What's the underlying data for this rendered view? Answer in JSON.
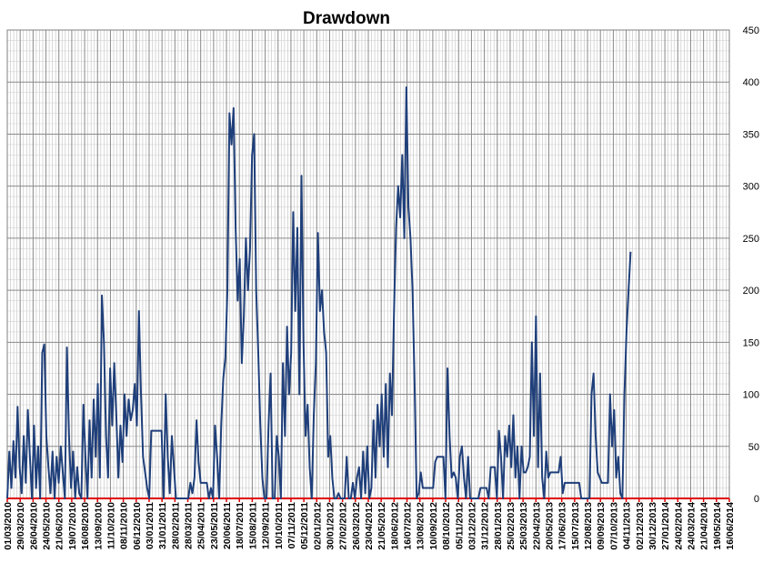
{
  "chart_data": {
    "type": "line",
    "title": "Drawdown",
    "xlabel": "",
    "ylabel": "",
    "y_axis_side": "right",
    "ylim": [
      0,
      450
    ],
    "y_ticks": [
      "0",
      "50",
      "100",
      "150",
      "200",
      "250",
      "300",
      "350",
      "400",
      "450"
    ],
    "x_tick_labels": [
      "01/03/2010",
      "29/03/2010",
      "26/04/2010",
      "24/05/2010",
      "21/06/2010",
      "19/07/2010",
      "16/08/2010",
      "13/09/2010",
      "11/10/2010",
      "08/11/2010",
      "06/12/2010",
      "03/01/2011",
      "31/01/2011",
      "28/02/2011",
      "28/03/2011",
      "25/04/2011",
      "23/05/2011",
      "20/06/2011",
      "18/07/2011",
      "15/08/2011",
      "12/09/2011",
      "10/10/2011",
      "07/11/2011",
      "05/12/2011",
      "02/01/2012",
      "30/01/2012",
      "27/02/2012",
      "26/03/2012",
      "23/04/2012",
      "21/05/2012",
      "18/06/2012",
      "16/07/2012",
      "13/08/2012",
      "10/09/2012",
      "08/10/2012",
      "05/11/2012",
      "03/12/2012",
      "31/12/2012",
      "28/01/2013",
      "25/02/2013",
      "25/03/2013",
      "22/04/2013",
      "20/05/2013",
      "17/06/2013",
      "15/07/2013",
      "12/08/2013",
      "09/09/2013",
      "07/10/2013",
      "04/11/2013",
      "02/12/2013",
      "30/12/2013",
      "27/01/2014",
      "24/02/2014",
      "24/03/2014",
      "21/04/2014",
      "19/05/2014",
      "16/06/2014"
    ],
    "grid": true,
    "legend": "none",
    "series": [
      {
        "color": "#1F3F7A",
        "points": [
          [
            0,
            0
          ],
          [
            1,
            45
          ],
          [
            2,
            10
          ],
          [
            3,
            55
          ],
          [
            4,
            20
          ],
          [
            5,
            88
          ],
          [
            6,
            30
          ],
          [
            7,
            5
          ],
          [
            8,
            60
          ],
          [
            9,
            15
          ],
          [
            10,
            85
          ],
          [
            11,
            40
          ],
          [
            12,
            0
          ],
          [
            13,
            70
          ],
          [
            14,
            10
          ],
          [
            15,
            50
          ],
          [
            16,
            0
          ],
          [
            17,
            140
          ],
          [
            18,
            148
          ],
          [
            19,
            60
          ],
          [
            20,
            30
          ],
          [
            21,
            5
          ],
          [
            22,
            45
          ],
          [
            23,
            0
          ],
          [
            24,
            40
          ],
          [
            25,
            15
          ],
          [
            26,
            50
          ],
          [
            27,
            25
          ],
          [
            28,
            0
          ],
          [
            29,
            145
          ],
          [
            30,
            60
          ],
          [
            31,
            10
          ],
          [
            32,
            45
          ],
          [
            33,
            0
          ],
          [
            34,
            30
          ],
          [
            35,
            5
          ],
          [
            36,
            0
          ],
          [
            37,
            90
          ],
          [
            38,
            40
          ],
          [
            39,
            0
          ],
          [
            40,
            75
          ],
          [
            41,
            20
          ],
          [
            42,
            95
          ],
          [
            43,
            40
          ],
          [
            44,
            110
          ],
          [
            45,
            20
          ],
          [
            46,
            195
          ],
          [
            47,
            150
          ],
          [
            48,
            60
          ],
          [
            49,
            20
          ],
          [
            50,
            125
          ],
          [
            51,
            70
          ],
          [
            52,
            130
          ],
          [
            53,
            80
          ],
          [
            54,
            20
          ],
          [
            55,
            70
          ],
          [
            56,
            35
          ],
          [
            57,
            100
          ],
          [
            58,
            60
          ],
          [
            59,
            95
          ],
          [
            60,
            75
          ],
          [
            61,
            85
          ],
          [
            62,
            110
          ],
          [
            63,
            70
          ],
          [
            64,
            180
          ],
          [
            65,
            100
          ],
          [
            66,
            40
          ],
          [
            67,
            25
          ],
          [
            68,
            10
          ],
          [
            69,
            0
          ],
          [
            70,
            65
          ],
          [
            71,
            65
          ],
          [
            72,
            65
          ],
          [
            73,
            65
          ],
          [
            74,
            65
          ],
          [
            75,
            65
          ],
          [
            76,
            0
          ],
          [
            77,
            100
          ],
          [
            78,
            40
          ],
          [
            79,
            5
          ],
          [
            80,
            60
          ],
          [
            81,
            30
          ],
          [
            82,
            0
          ],
          [
            83,
            0
          ],
          [
            84,
            0
          ],
          [
            85,
            0
          ],
          [
            86,
            0
          ],
          [
            87,
            0
          ],
          [
            88,
            0
          ],
          [
            89,
            15
          ],
          [
            90,
            5
          ],
          [
            91,
            20
          ],
          [
            92,
            75
          ],
          [
            93,
            35
          ],
          [
            94,
            15
          ],
          [
            95,
            15
          ],
          [
            96,
            15
          ],
          [
            97,
            15
          ],
          [
            98,
            0
          ],
          [
            99,
            10
          ],
          [
            100,
            0
          ],
          [
            101,
            70
          ],
          [
            102,
            40
          ],
          [
            103,
            0
          ],
          [
            104,
            70
          ],
          [
            105,
            115
          ],
          [
            106,
            135
          ],
          [
            107,
            200
          ],
          [
            108,
            370
          ],
          [
            109,
            340
          ],
          [
            110,
            375
          ],
          [
            111,
            260
          ],
          [
            112,
            190
          ],
          [
            113,
            230
          ],
          [
            114,
            130
          ],
          [
            115,
            175
          ],
          [
            116,
            250
          ],
          [
            117,
            200
          ],
          [
            118,
            240
          ],
          [
            119,
            330
          ],
          [
            120,
            350
          ],
          [
            121,
            200
          ],
          [
            122,
            140
          ],
          [
            123,
            70
          ],
          [
            124,
            20
          ],
          [
            125,
            0
          ],
          [
            126,
            0
          ],
          [
            127,
            70
          ],
          [
            128,
            120
          ],
          [
            129,
            0
          ],
          [
            130,
            0
          ],
          [
            131,
            60
          ],
          [
            132,
            40
          ],
          [
            133,
            0
          ],
          [
            134,
            130
          ],
          [
            135,
            60
          ],
          [
            136,
            165
          ],
          [
            137,
            100
          ],
          [
            138,
            140
          ],
          [
            139,
            275
          ],
          [
            140,
            180
          ],
          [
            141,
            260
          ],
          [
            142,
            100
          ],
          [
            143,
            310
          ],
          [
            144,
            150
          ],
          [
            145,
            60
          ],
          [
            146,
            90
          ],
          [
            147,
            30
          ],
          [
            148,
            0
          ],
          [
            149,
            80
          ],
          [
            150,
            130
          ],
          [
            151,
            255
          ],
          [
            152,
            180
          ],
          [
            153,
            200
          ],
          [
            154,
            160
          ],
          [
            155,
            140
          ],
          [
            156,
            40
          ],
          [
            157,
            60
          ],
          [
            158,
            20
          ],
          [
            159,
            0
          ],
          [
            160,
            0
          ],
          [
            161,
            5
          ],
          [
            162,
            0
          ],
          [
            163,
            0
          ],
          [
            164,
            0
          ],
          [
            165,
            40
          ],
          [
            166,
            0
          ],
          [
            167,
            0
          ],
          [
            168,
            15
          ],
          [
            169,
            0
          ],
          [
            170,
            20
          ],
          [
            171,
            30
          ],
          [
            172,
            0
          ],
          [
            173,
            45
          ],
          [
            174,
            5
          ],
          [
            175,
            50
          ],
          [
            176,
            0
          ],
          [
            177,
            10
          ],
          [
            178,
            75
          ],
          [
            179,
            20
          ],
          [
            180,
            90
          ],
          [
            181,
            50
          ],
          [
            182,
            100
          ],
          [
            183,
            40
          ],
          [
            184,
            110
          ],
          [
            185,
            30
          ],
          [
            186,
            120
          ],
          [
            187,
            80
          ],
          [
            188,
            180
          ],
          [
            189,
            260
          ],
          [
            190,
            300
          ],
          [
            191,
            270
          ],
          [
            192,
            330
          ],
          [
            193,
            250
          ],
          [
            194,
            395
          ],
          [
            195,
            280
          ],
          [
            196,
            250
          ],
          [
            197,
            200
          ],
          [
            198,
            110
          ],
          [
            199,
            0
          ],
          [
            200,
            5
          ],
          [
            201,
            25
          ],
          [
            202,
            10
          ],
          [
            203,
            10
          ],
          [
            204,
            10
          ],
          [
            205,
            10
          ],
          [
            206,
            10
          ],
          [
            207,
            10
          ],
          [
            208,
            35
          ],
          [
            209,
            40
          ],
          [
            210,
            40
          ],
          [
            211,
            40
          ],
          [
            212,
            40
          ],
          [
            213,
            0
          ],
          [
            214,
            125
          ],
          [
            215,
            60
          ],
          [
            216,
            20
          ],
          [
            217,
            25
          ],
          [
            218,
            20
          ],
          [
            219,
            0
          ],
          [
            220,
            40
          ],
          [
            221,
            50
          ],
          [
            222,
            20
          ],
          [
            223,
            0
          ],
          [
            224,
            40
          ],
          [
            225,
            0
          ],
          [
            226,
            0
          ],
          [
            227,
            0
          ],
          [
            228,
            0
          ],
          [
            229,
            0
          ],
          [
            230,
            10
          ],
          [
            231,
            10
          ],
          [
            232,
            10
          ],
          [
            233,
            10
          ],
          [
            234,
            0
          ],
          [
            235,
            30
          ],
          [
            236,
            30
          ],
          [
            237,
            30
          ],
          [
            238,
            0
          ],
          [
            239,
            65
          ],
          [
            240,
            40
          ],
          [
            241,
            0
          ],
          [
            242,
            60
          ],
          [
            243,
            40
          ],
          [
            244,
            70
          ],
          [
            245,
            30
          ],
          [
            246,
            80
          ],
          [
            247,
            20
          ],
          [
            248,
            50
          ],
          [
            249,
            0
          ],
          [
            250,
            50
          ],
          [
            251,
            25
          ],
          [
            252,
            25
          ],
          [
            253,
            30
          ],
          [
            254,
            40
          ],
          [
            255,
            150
          ],
          [
            256,
            60
          ],
          [
            257,
            175
          ],
          [
            258,
            30
          ],
          [
            259,
            120
          ],
          [
            260,
            20
          ],
          [
            261,
            0
          ],
          [
            262,
            45
          ],
          [
            263,
            20
          ],
          [
            264,
            25
          ],
          [
            265,
            25
          ],
          [
            266,
            25
          ],
          [
            267,
            25
          ],
          [
            268,
            25
          ],
          [
            269,
            40
          ],
          [
            270,
            5
          ],
          [
            271,
            15
          ],
          [
            272,
            15
          ],
          [
            273,
            15
          ],
          [
            274,
            15
          ],
          [
            275,
            15
          ],
          [
            276,
            15
          ],
          [
            277,
            15
          ],
          [
            278,
            15
          ],
          [
            279,
            0
          ],
          [
            280,
            0
          ],
          [
            281,
            0
          ],
          [
            282,
            0
          ],
          [
            283,
            0
          ],
          [
            284,
            100
          ],
          [
            285,
            120
          ],
          [
            286,
            60
          ],
          [
            287,
            25
          ],
          [
            288,
            20
          ],
          [
            289,
            15
          ],
          [
            290,
            15
          ],
          [
            291,
            15
          ],
          [
            292,
            15
          ],
          [
            293,
            100
          ],
          [
            294,
            50
          ],
          [
            295,
            85
          ],
          [
            296,
            20
          ],
          [
            297,
            40
          ],
          [
            298,
            5
          ],
          [
            299,
            0
          ],
          [
            300,
            100
          ],
          [
            301,
            160
          ],
          [
            302,
            200
          ],
          [
            303,
            237
          ]
        ],
        "x_extent": [
          0,
          351
        ]
      }
    ]
  }
}
